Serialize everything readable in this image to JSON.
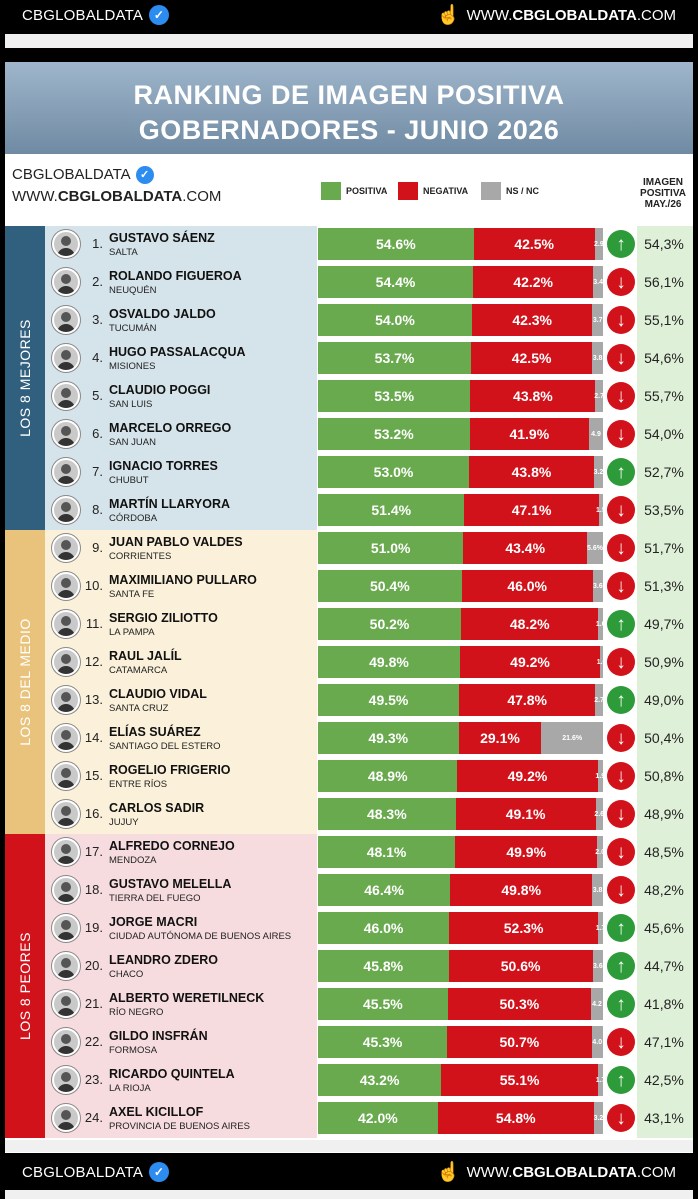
{
  "top_bar": {
    "brand": "CBGLOBALDATA",
    "site_prefix": "WWW.",
    "site_bold": "CBGLOBALDATA",
    "site_suffix": ".COM"
  },
  "bottom_bar": {
    "brand": "CBGLOBALDATA",
    "site_prefix": "WWW.",
    "site_bold": "CBGLOBALDATA",
    "site_suffix": ".COM"
  },
  "header": {
    "line1": "RANKING DE IMAGEN POSITIVA",
    "line2": "GOBERNADORES - JUNIO 2026"
  },
  "card_brand": {
    "name": "CBGLOBALDATA",
    "site_prefix": "WWW.",
    "site_bold": "CBGLOBALDATA",
    "site_suffix": ".COM"
  },
  "legend": {
    "positive": "POSITIVA",
    "negative": "NEGATIVA",
    "nsnc": "NS / NC"
  },
  "prev_header": {
    "line1": "IMAGEN",
    "line2": "POSITIVA",
    "line3": "MAY./26"
  },
  "colors": {
    "positive": "#6aaa4f",
    "negative": "#d2121b",
    "nsnc": "#a8a8a8",
    "up": "#2e9b3a",
    "down": "#d2121b",
    "group_best": "#2f5f8a",
    "group_mid": "#e8c27a",
    "group_worst": "#d2121b"
  },
  "groups": [
    {
      "label": "LOS 8 MEJORES",
      "color": "#31607f",
      "bg": "#d5e3ea"
    },
    {
      "label": "LOS 8 DEL MEDIO",
      "color": "#e9c37c",
      "bg": "#fbf1da"
    },
    {
      "label": "LOS 8 PEORES",
      "color": "#d2121b",
      "bg": "#f6dcdf"
    }
  ],
  "chart_data": {
    "type": "bar",
    "title": "RANKING DE IMAGEN POSITIVA GOBERNADORES - JUNIO 2026",
    "stacked": true,
    "series_names": [
      "POSITIVA",
      "NEGATIVA",
      "NS / NC"
    ],
    "rows": [
      {
        "rank": "1.",
        "name": "GUSTAVO SÁENZ",
        "province": "SALTA",
        "pos": 54.6,
        "pos_label": "54.6%",
        "neg": 42.5,
        "neg_label": "42.5%",
        "ns": 2.9,
        "ns_label": "2.9",
        "trend": "up",
        "prev": "54,3%"
      },
      {
        "rank": "2.",
        "name": "ROLANDO FIGUEROA",
        "province": "NEUQUÉN",
        "pos": 54.4,
        "pos_label": "54.4%",
        "neg": 42.2,
        "neg_label": "42.2%",
        "ns": 3.4,
        "ns_label": "3.4",
        "trend": "down",
        "prev": "56,1%"
      },
      {
        "rank": "3.",
        "name": "OSVALDO JALDO",
        "province": "TUCUMÁN",
        "pos": 54.0,
        "pos_label": "54.0%",
        "neg": 42.3,
        "neg_label": "42.3%",
        "ns": 3.7,
        "ns_label": "3.7",
        "trend": "down",
        "prev": "55,1%"
      },
      {
        "rank": "4.",
        "name": "HUGO PASSALACQUA",
        "province": "MISIONES",
        "pos": 53.7,
        "pos_label": "53.7%",
        "neg": 42.5,
        "neg_label": "42.5%",
        "ns": 3.8,
        "ns_label": "3.8",
        "trend": "down",
        "prev": "54,6%"
      },
      {
        "rank": "5.",
        "name": "CLAUDIO POGGI",
        "province": "SAN LUIS",
        "pos": 53.5,
        "pos_label": "53.5%",
        "neg": 43.8,
        "neg_label": "43.8%",
        "ns": 2.7,
        "ns_label": "2.7",
        "trend": "down",
        "prev": "55,7%"
      },
      {
        "rank": "6.",
        "name": "MARCELO ORREGO",
        "province": "SAN JUAN",
        "pos": 53.2,
        "pos_label": "53.2%",
        "neg": 41.9,
        "neg_label": "41.9%",
        "ns": 4.9,
        "ns_label": "4.9",
        "trend": "down",
        "prev": "54,0%"
      },
      {
        "rank": "7.",
        "name": "IGNACIO TORRES",
        "province": "CHUBUT",
        "pos": 53.0,
        "pos_label": "53.0%",
        "neg": 43.8,
        "neg_label": "43.8%",
        "ns": 3.2,
        "ns_label": "3.2",
        "trend": "up",
        "prev": "52,7%"
      },
      {
        "rank": "8.",
        "name": "MARTÍN LLARYORA",
        "province": "CÓRDOBA",
        "pos": 51.4,
        "pos_label": "51.4%",
        "neg": 47.1,
        "neg_label": "47.1%",
        "ns": 1.5,
        "ns_label": "1.5",
        "trend": "down",
        "prev": "53,5%"
      },
      {
        "rank": "9.",
        "name": "JUAN PABLO VALDES",
        "province": "CORRIENTES",
        "pos": 51.0,
        "pos_label": "51.0%",
        "neg": 43.4,
        "neg_label": "43.4%",
        "ns": 5.6,
        "ns_label": "5.6%",
        "trend": "down",
        "prev": "51,7%"
      },
      {
        "rank": "10.",
        "name": "MAXIMILIANO PULLARO",
        "province": "SANTA FE",
        "pos": 50.4,
        "pos_label": "50.4%",
        "neg": 46.0,
        "neg_label": "46.0%",
        "ns": 3.6,
        "ns_label": "3.6",
        "trend": "down",
        "prev": "51,3%"
      },
      {
        "rank": "11.",
        "name": "SERGIO ZILIOTTO",
        "province": "LA PAMPA",
        "pos": 50.2,
        "pos_label": "50.2%",
        "neg": 48.2,
        "neg_label": "48.2%",
        "ns": 1.6,
        "ns_label": "1.6",
        "trend": "up",
        "prev": "49,7%"
      },
      {
        "rank": "12.",
        "name": "RAUL JALÍL",
        "province": "CATAMARCA",
        "pos": 49.8,
        "pos_label": "49.8%",
        "neg": 49.2,
        "neg_label": "49.2%",
        "ns": 1.0,
        "ns_label": "1.0",
        "trend": "down",
        "prev": "50,9%"
      },
      {
        "rank": "13.",
        "name": "CLAUDIO VIDAL",
        "province": "SANTA CRUZ",
        "pos": 49.5,
        "pos_label": "49.5%",
        "neg": 47.8,
        "neg_label": "47.8%",
        "ns": 2.7,
        "ns_label": "2.7",
        "trend": "up",
        "prev": "49,0%"
      },
      {
        "rank": "14.",
        "name": "ELÍAS SUÁREZ",
        "province": "SANTIAGO DEL ESTERO",
        "pos": 49.3,
        "pos_label": "49.3%",
        "neg": 29.1,
        "neg_label": "29.1%",
        "ns": 21.6,
        "ns_label": "21.6%",
        "trend": "down",
        "prev": "50,4%"
      },
      {
        "rank": "15.",
        "name": "ROGELIO FRIGERIO",
        "province": "ENTRE RÍOS",
        "pos": 48.9,
        "pos_label": "48.9%",
        "neg": 49.2,
        "neg_label": "49.2%",
        "ns": 1.9,
        "ns_label": "1.9",
        "trend": "down",
        "prev": "50,8%"
      },
      {
        "rank": "16.",
        "name": "CARLOS SADIR",
        "province": "JUJUY",
        "pos": 48.3,
        "pos_label": "48.3%",
        "neg": 49.1,
        "neg_label": "49.1%",
        "ns": 2.6,
        "ns_label": "2.6",
        "trend": "down",
        "prev": "48,9%"
      },
      {
        "rank": "17.",
        "name": "ALFREDO CORNEJO",
        "province": "MENDOZA",
        "pos": 48.1,
        "pos_label": "48.1%",
        "neg": 49.9,
        "neg_label": "49.9%",
        "ns": 2.0,
        "ns_label": "2.0",
        "trend": "down",
        "prev": "48,5%"
      },
      {
        "rank": "18.",
        "name": "GUSTAVO MELELLA",
        "province": "TIERRA DEL FUEGO",
        "pos": 46.4,
        "pos_label": "46.4%",
        "neg": 49.8,
        "neg_label": "49.8%",
        "ns": 3.8,
        "ns_label": "3.8",
        "trend": "down",
        "prev": "48,2%"
      },
      {
        "rank": "19.",
        "name": "JORGE MACRI",
        "province": "CIUDAD AUTÓNOMA DE BUENOS AIRES",
        "pos": 46.0,
        "pos_label": "46.0%",
        "neg": 52.3,
        "neg_label": "52.3%",
        "ns": 1.7,
        "ns_label": "1.7",
        "trend": "up",
        "prev": "45,6%"
      },
      {
        "rank": "20.",
        "name": "LEANDRO ZDERO",
        "province": "CHACO",
        "pos": 45.8,
        "pos_label": "45.8%",
        "neg": 50.6,
        "neg_label": "50.6%",
        "ns": 3.6,
        "ns_label": "3.6",
        "trend": "up",
        "prev": "44,7%"
      },
      {
        "rank": "21.",
        "name": "ALBERTO WERETILNECK",
        "province": "RÍO NEGRO",
        "pos": 45.5,
        "pos_label": "45.5%",
        "neg": 50.3,
        "neg_label": "50.3%",
        "ns": 4.2,
        "ns_label": "4.2",
        "trend": "up",
        "prev": "41,8%"
      },
      {
        "rank": "22.",
        "name": "GILDO INSFRÁN",
        "province": "FORMOSA",
        "pos": 45.3,
        "pos_label": "45.3%",
        "neg": 50.7,
        "neg_label": "50.7%",
        "ns": 4.0,
        "ns_label": "4.0",
        "trend": "down",
        "prev": "47,1%"
      },
      {
        "rank": "23.",
        "name": "RICARDO QUINTELA",
        "province": "LA RIOJA",
        "pos": 43.2,
        "pos_label": "43.2%",
        "neg": 55.1,
        "neg_label": "55.1%",
        "ns": 1.7,
        "ns_label": "1.7",
        "trend": "up",
        "prev": "42,5%"
      },
      {
        "rank": "24.",
        "name": "AXEL KICILLOF",
        "province": "PROVINCIA DE BUENOS AIRES",
        "pos": 42.0,
        "pos_label": "42.0%",
        "neg": 54.8,
        "neg_label": "54.8%",
        "ns": 3.2,
        "ns_label": "3.2",
        "trend": "down",
        "prev": "43,1%"
      }
    ]
  }
}
